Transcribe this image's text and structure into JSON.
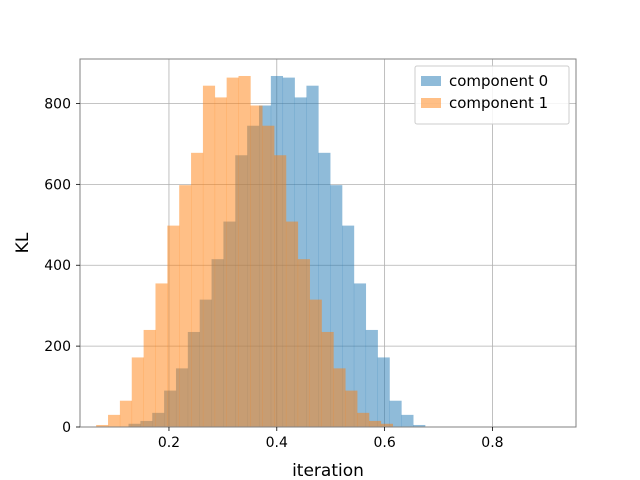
{
  "chart_data": {
    "type": "bar",
    "title": "",
    "xlabel": "iteration",
    "ylabel": "KL",
    "xlim": [
      0.035,
      0.955
    ],
    "ylim": [
      0,
      910
    ],
    "xticks": [
      0.2,
      0.4,
      0.6,
      0.8
    ],
    "xtick_labels": [
      "0.2",
      "0.4",
      "0.6",
      "0.8"
    ],
    "yticks": [
      0,
      200,
      400,
      600,
      800
    ],
    "ytick_labels": [
      "0",
      "200",
      "400",
      "600",
      "800"
    ],
    "grid": true,
    "legend_position": "top-right",
    "series": [
      {
        "name": "component 0",
        "color": "#1f77b4",
        "opacity": 0.5,
        "bins": [
          [
            0.125,
            0.147,
            8
          ],
          [
            0.147,
            0.169,
            15
          ],
          [
            0.169,
            0.191,
            35
          ],
          [
            0.191,
            0.213,
            90
          ],
          [
            0.213,
            0.235,
            145
          ],
          [
            0.235,
            0.257,
            235
          ],
          [
            0.257,
            0.279,
            315
          ],
          [
            0.279,
            0.301,
            415
          ],
          [
            0.301,
            0.323,
            508
          ],
          [
            0.323,
            0.345,
            672
          ],
          [
            0.345,
            0.367,
            745
          ],
          [
            0.367,
            0.389,
            795
          ],
          [
            0.389,
            0.411,
            868
          ],
          [
            0.411,
            0.433,
            864
          ],
          [
            0.433,
            0.455,
            815
          ],
          [
            0.455,
            0.477,
            844
          ],
          [
            0.477,
            0.499,
            678
          ],
          [
            0.499,
            0.521,
            598
          ],
          [
            0.521,
            0.543,
            498
          ],
          [
            0.543,
            0.565,
            355
          ],
          [
            0.565,
            0.587,
            240
          ],
          [
            0.587,
            0.609,
            172
          ],
          [
            0.609,
            0.631,
            65
          ],
          [
            0.631,
            0.653,
            30
          ],
          [
            0.653,
            0.675,
            5
          ]
        ]
      },
      {
        "name": "component 1",
        "color": "#ff7f0e",
        "opacity": 0.5,
        "bins": [
          [
            0.065,
            0.087,
            5
          ],
          [
            0.087,
            0.109,
            30
          ],
          [
            0.109,
            0.131,
            65
          ],
          [
            0.131,
            0.153,
            172
          ],
          [
            0.153,
            0.175,
            240
          ],
          [
            0.175,
            0.197,
            355
          ],
          [
            0.197,
            0.219,
            498
          ],
          [
            0.219,
            0.241,
            598
          ],
          [
            0.241,
            0.263,
            678
          ],
          [
            0.263,
            0.285,
            844
          ],
          [
            0.285,
            0.307,
            815
          ],
          [
            0.307,
            0.329,
            864
          ],
          [
            0.329,
            0.351,
            868
          ],
          [
            0.351,
            0.373,
            795
          ],
          [
            0.373,
            0.395,
            745
          ],
          [
            0.395,
            0.417,
            672
          ],
          [
            0.417,
            0.439,
            508
          ],
          [
            0.439,
            0.461,
            415
          ],
          [
            0.461,
            0.483,
            315
          ],
          [
            0.483,
            0.505,
            235
          ],
          [
            0.505,
            0.527,
            145
          ],
          [
            0.527,
            0.549,
            90
          ],
          [
            0.549,
            0.571,
            35
          ],
          [
            0.571,
            0.593,
            15
          ],
          [
            0.593,
            0.615,
            8
          ]
        ]
      }
    ]
  }
}
